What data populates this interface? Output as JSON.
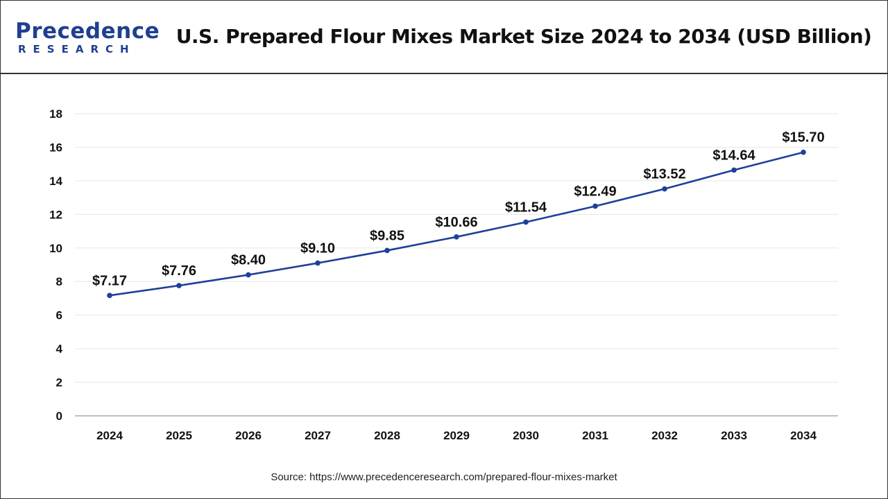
{
  "header": {
    "logo_main": "Precedence",
    "logo_sub": "RESEARCH",
    "title": "U.S. Prepared Flour Mixes Market Size 2024 to 2034 (USD Billion)"
  },
  "colors": {
    "line": "#1f3f9a",
    "brand": "#1f3f8f",
    "grid": "#e6e6e6"
  },
  "chart_data": {
    "type": "line",
    "title": "U.S. Prepared Flour Mixes Market Size 2024 to 2034 (USD Billion)",
    "xlabel": "",
    "ylabel": "",
    "categories": [
      "2024",
      "2025",
      "2026",
      "2027",
      "2028",
      "2029",
      "2030",
      "2031",
      "2032",
      "2033",
      "2034"
    ],
    "series": [
      {
        "values": [
          7.17,
          7.76,
          8.4,
          9.1,
          9.85,
          10.66,
          11.54,
          12.49,
          13.52,
          14.64,
          15.7
        ],
        "labels": [
          "$7.17",
          "$7.76",
          "$8.40",
          "$9.10",
          "$9.85",
          "$10.66",
          "$11.54",
          "$12.49",
          "$13.52",
          "$14.64",
          "$15.70"
        ]
      }
    ],
    "ylim": [
      0,
      18
    ],
    "yticks": [
      "0",
      "2",
      "4",
      "6",
      "8",
      "10",
      "12",
      "14",
      "16",
      "18"
    ],
    "grid": true,
    "legend": "none"
  },
  "footer": {
    "source": "Source: https://www.precedenceresearch.com/prepared-flour-mixes-market"
  }
}
